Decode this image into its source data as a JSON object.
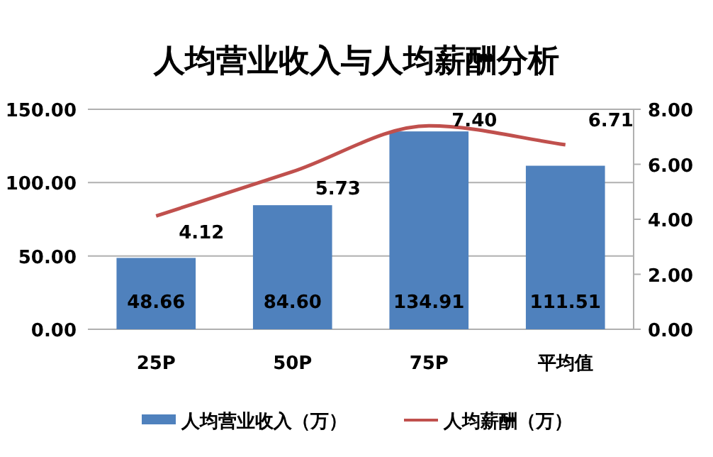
{
  "chart_data": {
    "type": "bar",
    "title": "人均营业收入与人均薪酬分析",
    "categories": [
      "25P",
      "50P",
      "75P",
      "平均值"
    ],
    "series": [
      {
        "name": "人均营业收入（万）",
        "color": "#4f81bd",
        "values": [
          48.66,
          84.6,
          134.91,
          111.51
        ],
        "value_labels": [
          "48.66",
          "84.60",
          "134.91",
          "111.51"
        ]
      },
      {
        "name": "人均薪酬（万）",
        "type": "line",
        "axis": "y2",
        "color": "#c0504d",
        "values": [
          4.12,
          5.73,
          7.4,
          6.71
        ],
        "value_labels": [
          "4.12",
          "5.73",
          "7.40",
          "6.71"
        ]
      }
    ],
    "ylim": [
      0,
      150
    ],
    "yticks": [
      {
        "value": 0,
        "label": "0.00"
      },
      {
        "value": 50,
        "label": "50.00"
      },
      {
        "value": 100,
        "label": "100.00"
      },
      {
        "value": 150,
        "label": "150.00"
      }
    ],
    "y2lim": [
      0,
      8
    ],
    "y2ticks": [
      {
        "value": 0,
        "label": "0.00"
      },
      {
        "value": 2,
        "label": "2.00"
      },
      {
        "value": 4,
        "label": "4.00"
      },
      {
        "value": 6,
        "label": "6.00"
      },
      {
        "value": 8,
        "label": "8.00"
      }
    ],
    "grid": "y",
    "legend": "bottom"
  }
}
